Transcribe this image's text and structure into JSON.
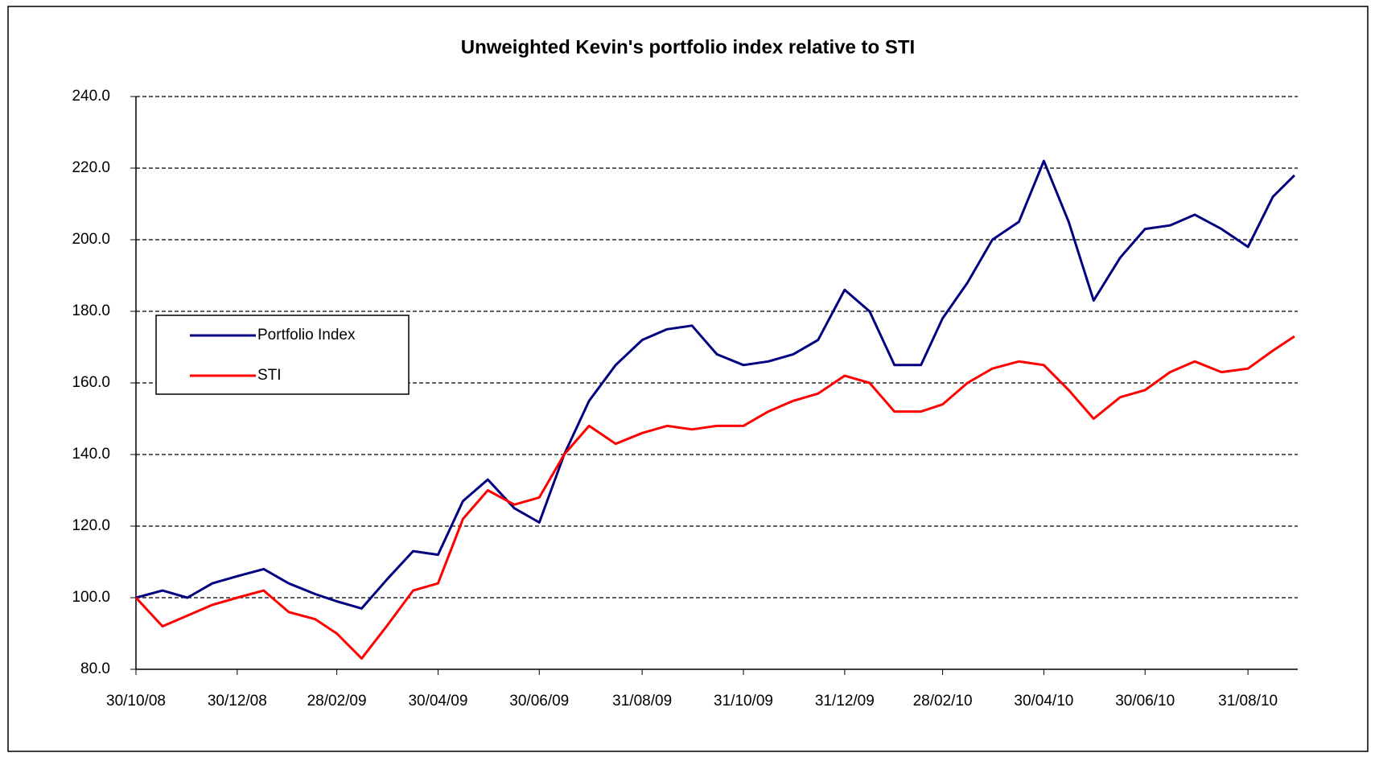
{
  "chart_data": {
    "type": "line",
    "title": "Unweighted Kevin's portfolio index relative to STI",
    "x": [
      "30/10/08",
      "15/11/08",
      "30/11/08",
      "15/12/08",
      "30/12/08",
      "15/01/09",
      "30/01/09",
      "15/02/09",
      "28/02/09",
      "15/03/09",
      "30/03/09",
      "15/04/09",
      "30/04/09",
      "15/05/09",
      "30/05/09",
      "15/06/09",
      "30/06/09",
      "15/07/09",
      "30/07/09",
      "15/08/09",
      "31/08/09",
      "15/09/09",
      "30/09/09",
      "15/10/09",
      "31/10/09",
      "15/11/09",
      "30/11/09",
      "15/12/09",
      "31/12/09",
      "15/01/10",
      "30/01/10",
      "15/02/10",
      "28/02/10",
      "15/03/10",
      "30/03/10",
      "15/04/10",
      "30/04/10",
      "15/05/10",
      "30/05/10",
      "15/06/10",
      "30/06/10",
      "15/07/10",
      "30/07/10",
      "15/08/10",
      "31/08/10",
      "15/09/10",
      "28/09/10"
    ],
    "series": [
      {
        "name": "Portfolio Index",
        "color": "#000080",
        "values": [
          100,
          102,
          100,
          104,
          106,
          108,
          104,
          101,
          99,
          97,
          105,
          113,
          112,
          127,
          133,
          125,
          121,
          140,
          155,
          165,
          172,
          175,
          176,
          168,
          165,
          166,
          168,
          172,
          186,
          180,
          165,
          165,
          178,
          188,
          200,
          205,
          222,
          205,
          183,
          195,
          203,
          204,
          207,
          203,
          198,
          212,
          218
        ]
      },
      {
        "name": "STI",
        "color": "#ff0000",
        "values": [
          100,
          92,
          95,
          98,
          100,
          102,
          96,
          94,
          90,
          83,
          92,
          102,
          104,
          122,
          130,
          126,
          128,
          140,
          148,
          143,
          146,
          148,
          147,
          148,
          148,
          152,
          155,
          157,
          162,
          160,
          152,
          152,
          154,
          160,
          164,
          166,
          165,
          158,
          150,
          156,
          158,
          163,
          166,
          163,
          164,
          169,
          173
        ]
      }
    ],
    "xlim": [
      "30/10/08",
      "30/09/10"
    ],
    "xticks": [
      "30/10/08",
      "30/12/08",
      "28/02/09",
      "30/04/09",
      "30/06/09",
      "31/08/09",
      "31/10/09",
      "31/12/09",
      "28/02/10",
      "30/04/10",
      "30/06/10",
      "31/08/10"
    ],
    "ylim": [
      80,
      240
    ],
    "yticks": [
      {
        "value": 80,
        "label": "80.0"
      },
      {
        "value": 100,
        "label": "100.0"
      },
      {
        "value": 120,
        "label": "120.0"
      },
      {
        "value": 140,
        "label": "140.0"
      },
      {
        "value": 160,
        "label": "160.0"
      },
      {
        "value": 180,
        "label": "180.0"
      },
      {
        "value": 200,
        "label": "200.0"
      },
      {
        "value": 220,
        "label": "220.0"
      },
      {
        "value": 240,
        "label": "240.0"
      }
    ],
    "grid": true,
    "legend": "left"
  }
}
